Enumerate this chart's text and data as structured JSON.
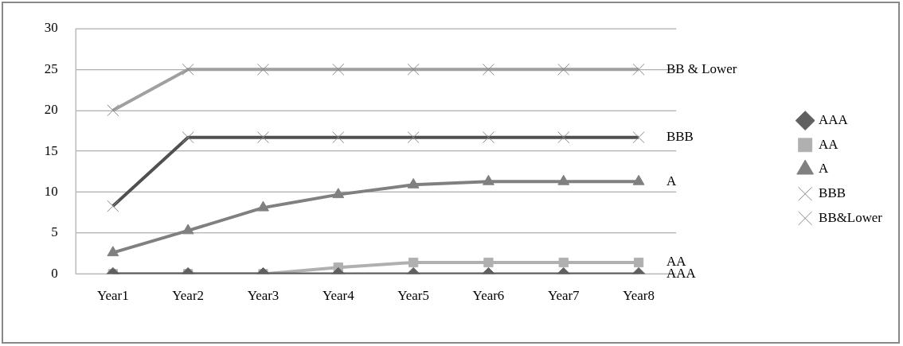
{
  "chart_data": {
    "type": "line",
    "categories": [
      "Year1",
      "Year2",
      "Year3",
      "Year4",
      "Year5",
      "Year6",
      "Year7",
      "Year8"
    ],
    "series": [
      {
        "name": "AAA",
        "color": "#606060",
        "marker": "diamond",
        "values": [
          0,
          0,
          0,
          0,
          0,
          0,
          0,
          0
        ]
      },
      {
        "name": "AA",
        "color": "#b0b0b0",
        "marker": "square",
        "values": [
          0,
          0,
          0,
          0.8,
          1.4,
          1.4,
          1.4,
          1.4
        ]
      },
      {
        "name": "A",
        "color": "#808080",
        "marker": "triangle",
        "values": [
          2.6,
          5.3,
          8.1,
          9.7,
          10.9,
          11.3,
          11.3,
          11.3
        ]
      },
      {
        "name": "BBB",
        "color": "#505050",
        "marker": "cross",
        "values": [
          8.3,
          16.7,
          16.7,
          16.7,
          16.7,
          16.7,
          16.7,
          16.7
        ]
      },
      {
        "name": "BB&Lower",
        "color": "#a0a0a0",
        "marker": "cross",
        "values": [
          20,
          25,
          25,
          25,
          25,
          25,
          25,
          25
        ]
      }
    ],
    "ylim": [
      0,
      30
    ],
    "yticks": [
      0,
      5,
      10,
      15,
      20,
      25,
      30
    ],
    "grid": "y",
    "legend": "right",
    "line_style": "solid",
    "annotations": [
      {
        "text": "BB & Lower",
        "x": "Year8",
        "y": 25
      },
      {
        "text": "BBB",
        "x": "Year8",
        "y": 16.7
      },
      {
        "text": "A",
        "x": "Year8",
        "y": 11.3
      },
      {
        "text": "AA",
        "x": "Year8",
        "y": 1.4
      },
      {
        "text": "AAA",
        "x": "Year8",
        "y": 0
      }
    ]
  }
}
